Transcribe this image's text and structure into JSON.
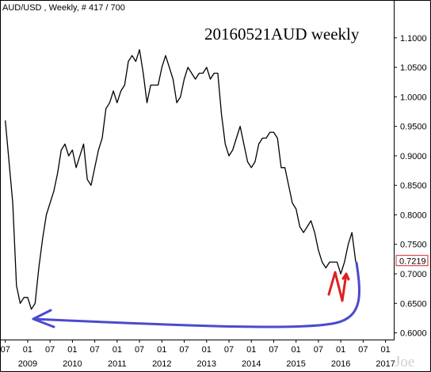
{
  "header": {
    "symbol_label": "AUD/USD , Weekly, # 417 / 700"
  },
  "chart_title": "20160521AUD weekly",
  "signature": "Joe",
  "chart_data": {
    "type": "line",
    "title": "20160521AUD weekly",
    "series": [
      {
        "name": "",
        "x": [
          "2008-07",
          "2008-08",
          "2008-09",
          "2008-10",
          "2008-11",
          "2008-12",
          "2009-01",
          "2009-02",
          "2009-03",
          "2009-04",
          "2009-05",
          "2009-06",
          "2009-07",
          "2009-08",
          "2009-09",
          "2009-10",
          "2009-11",
          "2009-12",
          "2010-01",
          "2010-02",
          "2010-03",
          "2010-04",
          "2010-05",
          "2010-06",
          "2010-07",
          "2010-08",
          "2010-09",
          "2010-10",
          "2010-11",
          "2010-12",
          "2011-01",
          "2011-02",
          "2011-03",
          "2011-04",
          "2011-05",
          "2011-06",
          "2011-07",
          "2011-08",
          "2011-09",
          "2011-10",
          "2011-11",
          "2011-12",
          "2012-01",
          "2012-02",
          "2012-03",
          "2012-04",
          "2012-05",
          "2012-06",
          "2012-07",
          "2012-08",
          "2012-09",
          "2012-10",
          "2012-11",
          "2012-12",
          "2013-01",
          "2013-02",
          "2013-03",
          "2013-04",
          "2013-05",
          "2013-06",
          "2013-07",
          "2013-08",
          "2013-09",
          "2013-10",
          "2013-11",
          "2013-12",
          "2014-01",
          "2014-02",
          "2014-03",
          "2014-04",
          "2014-05",
          "2014-06",
          "2014-07",
          "2014-08",
          "2014-09",
          "2014-10",
          "2014-11",
          "2014-12",
          "2015-01",
          "2015-02",
          "2015-03",
          "2015-04",
          "2015-05",
          "2015-06",
          "2015-07",
          "2015-08",
          "2015-09",
          "2015-10",
          "2015-11",
          "2015-12",
          "2016-01",
          "2016-02",
          "2016-03",
          "2016-04",
          "2016-05"
        ],
        "values": [
          0.96,
          0.89,
          0.82,
          0.68,
          0.65,
          0.66,
          0.66,
          0.64,
          0.65,
          0.71,
          0.76,
          0.8,
          0.82,
          0.84,
          0.87,
          0.91,
          0.92,
          0.9,
          0.91,
          0.88,
          0.9,
          0.92,
          0.86,
          0.85,
          0.88,
          0.91,
          0.93,
          0.98,
          0.99,
          1.01,
          0.99,
          1.01,
          1.02,
          1.06,
          1.07,
          1.06,
          1.08,
          1.04,
          0.99,
          1.02,
          1.02,
          1.02,
          1.05,
          1.07,
          1.05,
          1.03,
          0.99,
          1.0,
          1.03,
          1.05,
          1.04,
          1.03,
          1.04,
          1.04,
          1.05,
          1.03,
          1.04,
          1.04,
          0.97,
          0.92,
          0.9,
          0.91,
          0.93,
          0.95,
          0.92,
          0.89,
          0.88,
          0.89,
          0.92,
          0.93,
          0.93,
          0.94,
          0.94,
          0.93,
          0.88,
          0.88,
          0.85,
          0.82,
          0.81,
          0.78,
          0.77,
          0.78,
          0.79,
          0.77,
          0.74,
          0.72,
          0.71,
          0.72,
          0.72,
          0.72,
          0.7,
          0.72,
          0.75,
          0.77,
          0.72
        ]
      }
    ],
    "xlabel": "",
    "ylabel": "",
    "ylim": [
      0.59,
      1.14
    ],
    "y_ticks": [
      "0.6000",
      "0.6500",
      "0.7000",
      "0.7500",
      "0.8000",
      "0.8500",
      "0.9000",
      "0.9500",
      "1.0000",
      "1.0500",
      "1.1000"
    ],
    "x_month_ticks": [
      {
        "date": "2008-07",
        "label": "07"
      },
      {
        "date": "2009-01",
        "label": "01"
      },
      {
        "date": "2009-07",
        "label": "07"
      },
      {
        "date": "2010-01",
        "label": "01"
      },
      {
        "date": "2010-07",
        "label": "07"
      },
      {
        "date": "2011-01",
        "label": "01"
      },
      {
        "date": "2011-07",
        "label": "07"
      },
      {
        "date": "2012-01",
        "label": "01"
      },
      {
        "date": "2012-07",
        "label": "07"
      },
      {
        "date": "2013-01",
        "label": "01"
      },
      {
        "date": "2013-07",
        "label": "07"
      },
      {
        "date": "2014-01",
        "label": "01"
      },
      {
        "date": "2014-07",
        "label": "07"
      },
      {
        "date": "2015-01",
        "label": "01"
      },
      {
        "date": "2015-07",
        "label": "07"
      },
      {
        "date": "2016-01",
        "label": "01"
      },
      {
        "date": "2016-07",
        "label": "07"
      },
      {
        "date": "2017-01",
        "label": "01"
      }
    ],
    "x_year_labels": [
      {
        "date": "2009-01",
        "label": "2009"
      },
      {
        "date": "2010-01",
        "label": "2010"
      },
      {
        "date": "2011-01",
        "label": "2011"
      },
      {
        "date": "2012-01",
        "label": "2012"
      },
      {
        "date": "2013-01",
        "label": "2013"
      },
      {
        "date": "2014-01",
        "label": "2014"
      },
      {
        "date": "2015-01",
        "label": "2015"
      },
      {
        "date": "2016-01",
        "label": "2016"
      },
      {
        "date": "2017-01",
        "label": "2017"
      }
    ],
    "x_range": [
      "2008-06",
      "2017-03"
    ],
    "last_price_label": "0.7219",
    "last_price_value": 0.7219,
    "grid": false,
    "line_color": "#000000",
    "annotations": [
      {
        "kind": "blue curved arrow",
        "color": "#4a4ad0",
        "from_date": "2016-07",
        "from_value": 0.7,
        "to_date": "2008-12",
        "to_value": 0.605
      },
      {
        "kind": "red hand-drawn N arrow",
        "color": "#e02020",
        "at_date": "2016-04",
        "at_value": 0.67
      }
    ]
  }
}
